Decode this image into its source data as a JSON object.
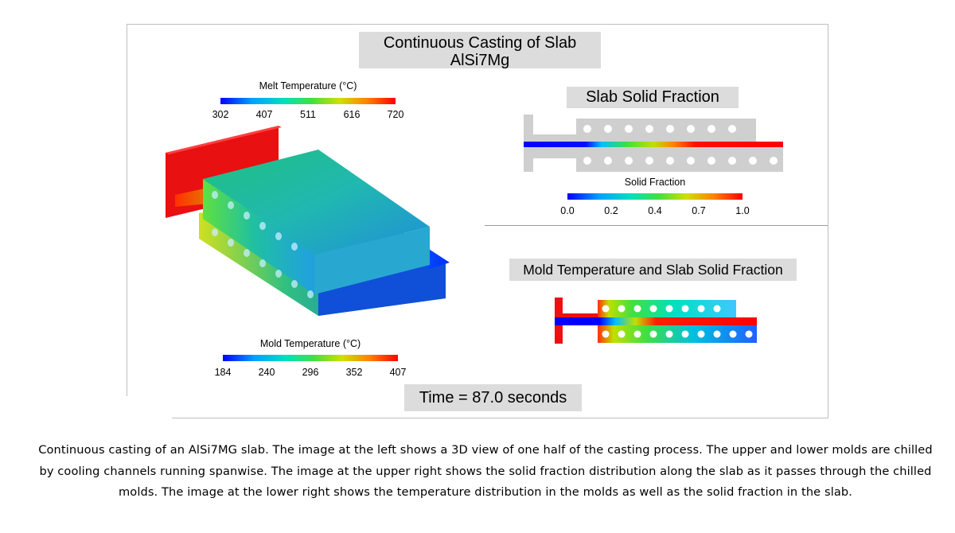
{
  "title": {
    "line1": "Continuous Casting of Slab",
    "line2": "AlSi7Mg"
  },
  "melt_colorbar": {
    "label": "Melt Temperature (°C)",
    "ticks": [
      "302",
      "407",
      "511",
      "616",
      "720"
    ]
  },
  "mold_colorbar": {
    "label": "Mold Temperature (°C)",
    "ticks": [
      "184",
      "240",
      "296",
      "352",
      "407"
    ]
  },
  "solid_colorbar": {
    "label": "Solid Fraction",
    "ticks": [
      "0.0",
      "0.2",
      "0.4",
      "0.7",
      "1.0"
    ]
  },
  "panels": {
    "solid_fraction_label": "Slab Solid Fraction",
    "mold_and_solid_label": "Mold Temperature and Slab Solid Fraction"
  },
  "time_label": "Time = 87.0 seconds",
  "caption": "Continuous casting of an AlSi7MG slab. The image at the left shows a 3D view of one half of the casting process. The upper and lower molds are chilled by cooling channels running spanwise. The image at the upper right shows the solid fraction distribution along the slab as it passes through the chilled molds. The image at the lower right shows the temperature distribution in the molds as well as the solid fraction in the slab.",
  "colors": {
    "rainbow": [
      "#0000ff",
      "#00a0ff",
      "#00e0c0",
      "#40e040",
      "#d0e000",
      "#ff8000",
      "#ff0000"
    ],
    "mold_gray": "#cfcfcf",
    "label_box": "#dcdcdc"
  }
}
